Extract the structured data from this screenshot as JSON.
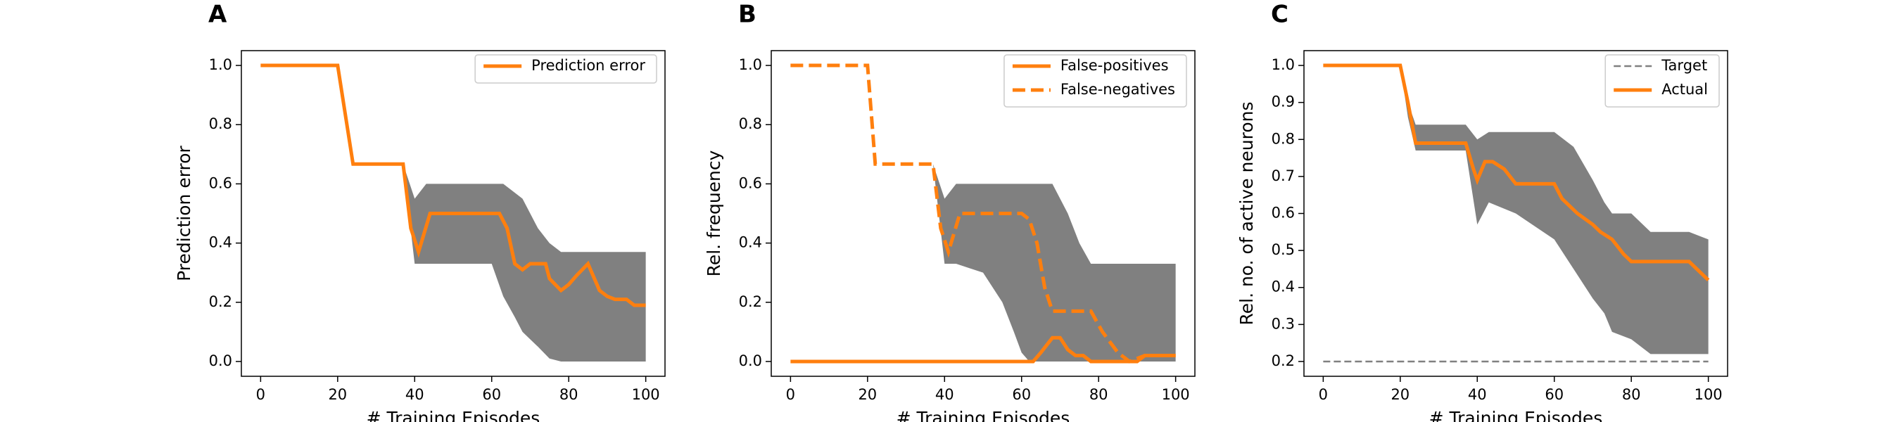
{
  "chart_data": [
    {
      "type": "line",
      "panel_label": "A",
      "ylabel": "Prediction error",
      "xlabel": "# Training Episodes",
      "xlim": [
        -5,
        105
      ],
      "ylim": [
        -0.05,
        1.05
      ],
      "xticks": [
        0,
        20,
        40,
        60,
        80,
        100
      ],
      "yticks": [
        {
          "value": 0,
          "label": "0.0"
        },
        0.2,
        0.4,
        0.6,
        0.8,
        {
          "value": 1,
          "label": "1.0"
        }
      ],
      "legend": "upper right",
      "band": {
        "color": "#808080",
        "x": [
          37,
          40,
          43,
          50,
          60,
          63,
          66,
          68,
          72,
          75,
          78,
          80,
          90,
          100
        ],
        "upper": [
          0.667,
          0.55,
          0.6,
          0.6,
          0.6,
          0.6,
          0.57,
          0.55,
          0.45,
          0.4,
          0.37,
          0.37,
          0.37,
          0.37
        ],
        "lower": [
          0.667,
          0.33,
          0.33,
          0.33,
          0.33,
          0.22,
          0.15,
          0.1,
          0.05,
          0.01,
          0,
          0,
          0,
          0
        ]
      },
      "series": [
        {
          "name": "Prediction error",
          "color": "#ff7f0e",
          "linestyle": "solid",
          "x": [
            0,
            20,
            24,
            37,
            39,
            41,
            44,
            50,
            62,
            64,
            66,
            68,
            70,
            74,
            75,
            78,
            80,
            82,
            85,
            88,
            90,
            92,
            95,
            97,
            100
          ],
          "values": [
            1,
            1,
            0.667,
            0.667,
            0.45,
            0.37,
            0.5,
            0.5,
            0.5,
            0.45,
            0.33,
            0.31,
            0.33,
            0.33,
            0.28,
            0.24,
            0.26,
            0.29,
            0.33,
            0.24,
            0.22,
            0.21,
            0.21,
            0.19,
            0.19
          ]
        }
      ]
    },
    {
      "type": "line",
      "panel_label": "B",
      "ylabel": "Rel. frequency",
      "xlabel": "# Training Episodes",
      "xlim": [
        -5,
        105
      ],
      "ylim": [
        -0.05,
        1.05
      ],
      "xticks": [
        0,
        20,
        40,
        60,
        80,
        100
      ],
      "yticks": [
        {
          "value": 0,
          "label": "0.0"
        },
        0.2,
        0.4,
        0.6,
        0.8,
        {
          "value": 1,
          "label": "1.0"
        }
      ],
      "legend": "upper right",
      "band": {
        "color": "#808080",
        "x": [
          37,
          40,
          43,
          50,
          55,
          58,
          60,
          62,
          68,
          72,
          75,
          78,
          80,
          90,
          100
        ],
        "upper": [
          0.667,
          0.55,
          0.6,
          0.6,
          0.6,
          0.6,
          0.6,
          0.6,
          0.6,
          0.5,
          0.4,
          0.33,
          0.33,
          0.33,
          0.33
        ],
        "lower": [
          0.667,
          0.33,
          0.33,
          0.3,
          0.2,
          0.1,
          0.03,
          0,
          0,
          0,
          0,
          0,
          0,
          0,
          0
        ]
      },
      "series": [
        {
          "name": "False-positives",
          "color": "#ff7f0e",
          "linestyle": "solid",
          "x": [
            0,
            63,
            65,
            68,
            70,
            72,
            74,
            76,
            78,
            80,
            90,
            92,
            100
          ],
          "values": [
            0,
            0,
            0.03,
            0.08,
            0.08,
            0.04,
            0.02,
            0.02,
            0,
            0,
            0,
            0.02,
            0.02
          ]
        },
        {
          "name": "False-negatives",
          "color": "#ff7f0e",
          "linestyle": "dashed",
          "x": [
            0,
            20,
            22,
            37,
            39,
            41,
            44,
            50,
            60,
            62,
            64,
            66,
            68,
            75,
            78,
            81,
            85,
            88,
            92,
            100
          ],
          "values": [
            1,
            1,
            0.667,
            0.667,
            0.45,
            0.37,
            0.5,
            0.5,
            0.5,
            0.48,
            0.4,
            0.25,
            0.17,
            0.17,
            0.17,
            0.1,
            0.03,
            0,
            0.02,
            0.02
          ]
        }
      ]
    },
    {
      "type": "line",
      "panel_label": "C",
      "ylabel": "Rel. no. of active neurons",
      "xlabel": "# Training Episodes",
      "xlim": [
        -5,
        105
      ],
      "ylim": [
        0.16,
        1.04
      ],
      "xticks": [
        0,
        20,
        40,
        60,
        80,
        100
      ],
      "yticks": [
        0.2,
        0.3,
        0.4,
        0.5,
        0.6,
        0.7,
        0.8,
        0.9,
        {
          "value": 1,
          "label": "1.0"
        }
      ],
      "legend": "upper right",
      "band": {
        "color": "#808080",
        "x": [
          20,
          22,
          24,
          37,
          40,
          43,
          50,
          60,
          65,
          70,
          73,
          75,
          80,
          85,
          90,
          95,
          100
        ],
        "upper": [
          1,
          0.9,
          0.84,
          0.84,
          0.8,
          0.82,
          0.82,
          0.82,
          0.78,
          0.69,
          0.63,
          0.6,
          0.6,
          0.55,
          0.55,
          0.55,
          0.53
        ],
        "lower": [
          1,
          0.86,
          0.77,
          0.77,
          0.57,
          0.63,
          0.6,
          0.53,
          0.45,
          0.37,
          0.33,
          0.28,
          0.26,
          0.22,
          0.22,
          0.22,
          0.22
        ]
      },
      "series": [
        {
          "name": "Target",
          "color": "#808080",
          "linestyle": "dashed",
          "x": [
            0,
            100
          ],
          "values": [
            0.2,
            0.2
          ]
        },
        {
          "name": "Actual",
          "color": "#ff7f0e",
          "linestyle": "solid",
          "x": [
            0,
            20,
            22,
            24,
            37,
            39,
            40,
            42,
            44,
            47,
            50,
            55,
            60,
            62,
            66,
            70,
            72,
            75,
            78,
            80,
            85,
            90,
            95,
            100
          ],
          "values": [
            1,
            1,
            0.9,
            0.79,
            0.79,
            0.72,
            0.69,
            0.74,
            0.74,
            0.72,
            0.68,
            0.68,
            0.68,
            0.64,
            0.6,
            0.57,
            0.55,
            0.53,
            0.49,
            0.47,
            0.47,
            0.47,
            0.47,
            0.42
          ]
        }
      ]
    }
  ]
}
